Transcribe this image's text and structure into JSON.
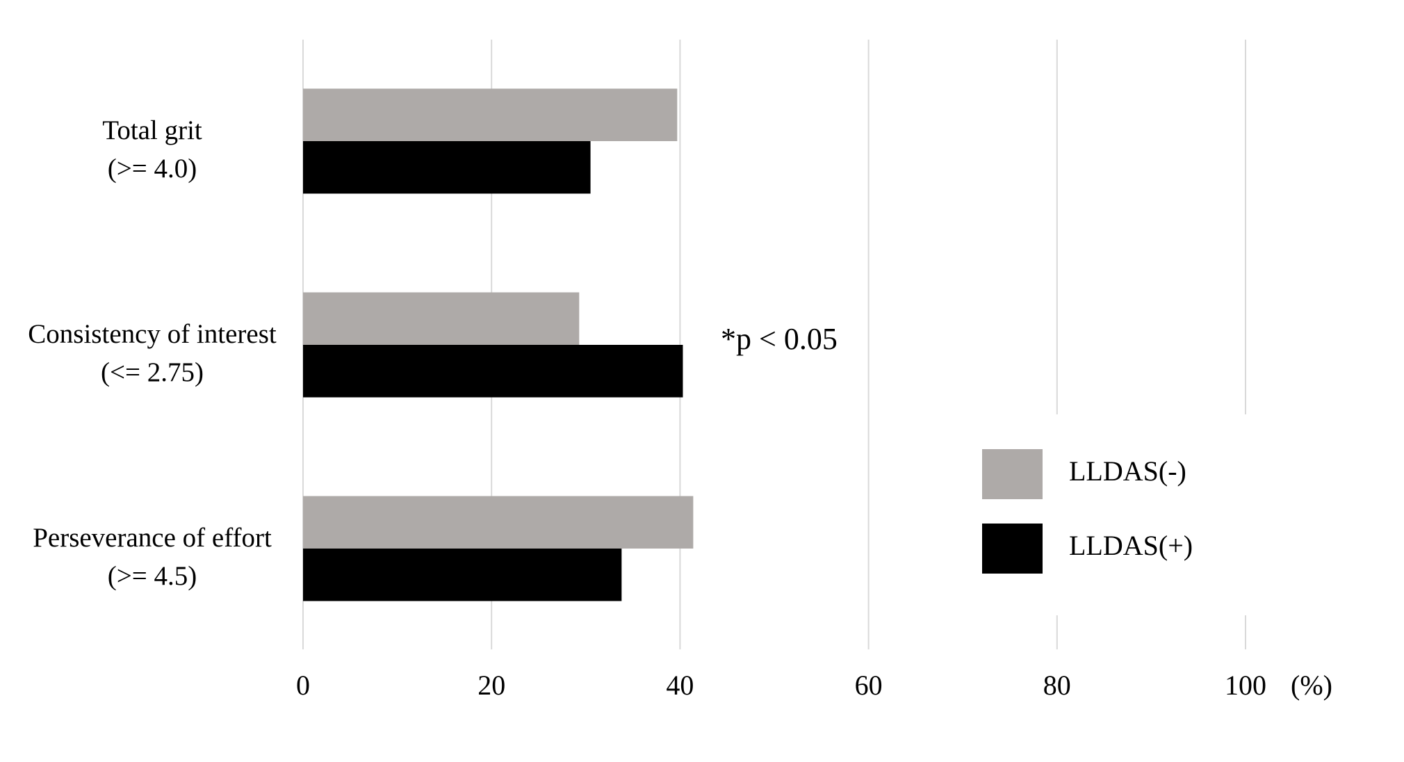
{
  "chart_data": {
    "type": "hbar",
    "categories": [
      [
        "Total grit",
        "(>= 4.0)"
      ],
      [
        "Consistency of interest",
        "(<= 2.75)"
      ],
      [
        "Perseverance of effort",
        "(>= 4.5)"
      ]
    ],
    "series": [
      {
        "name": "LLDAS(-)",
        "color": "#aeaaa8",
        "values": [
          39.7,
          29.3,
          41.4
        ]
      },
      {
        "name": "LLDAS(+)",
        "color": "#000000",
        "values": [
          30.5,
          40.3,
          33.8
        ]
      }
    ],
    "xlim": [
      0,
      100
    ],
    "xticks": [
      0,
      20,
      40,
      60,
      80,
      100
    ],
    "xlabel": "(%)",
    "annotation": "*p < 0.05",
    "grid": true,
    "legend": "right"
  }
}
